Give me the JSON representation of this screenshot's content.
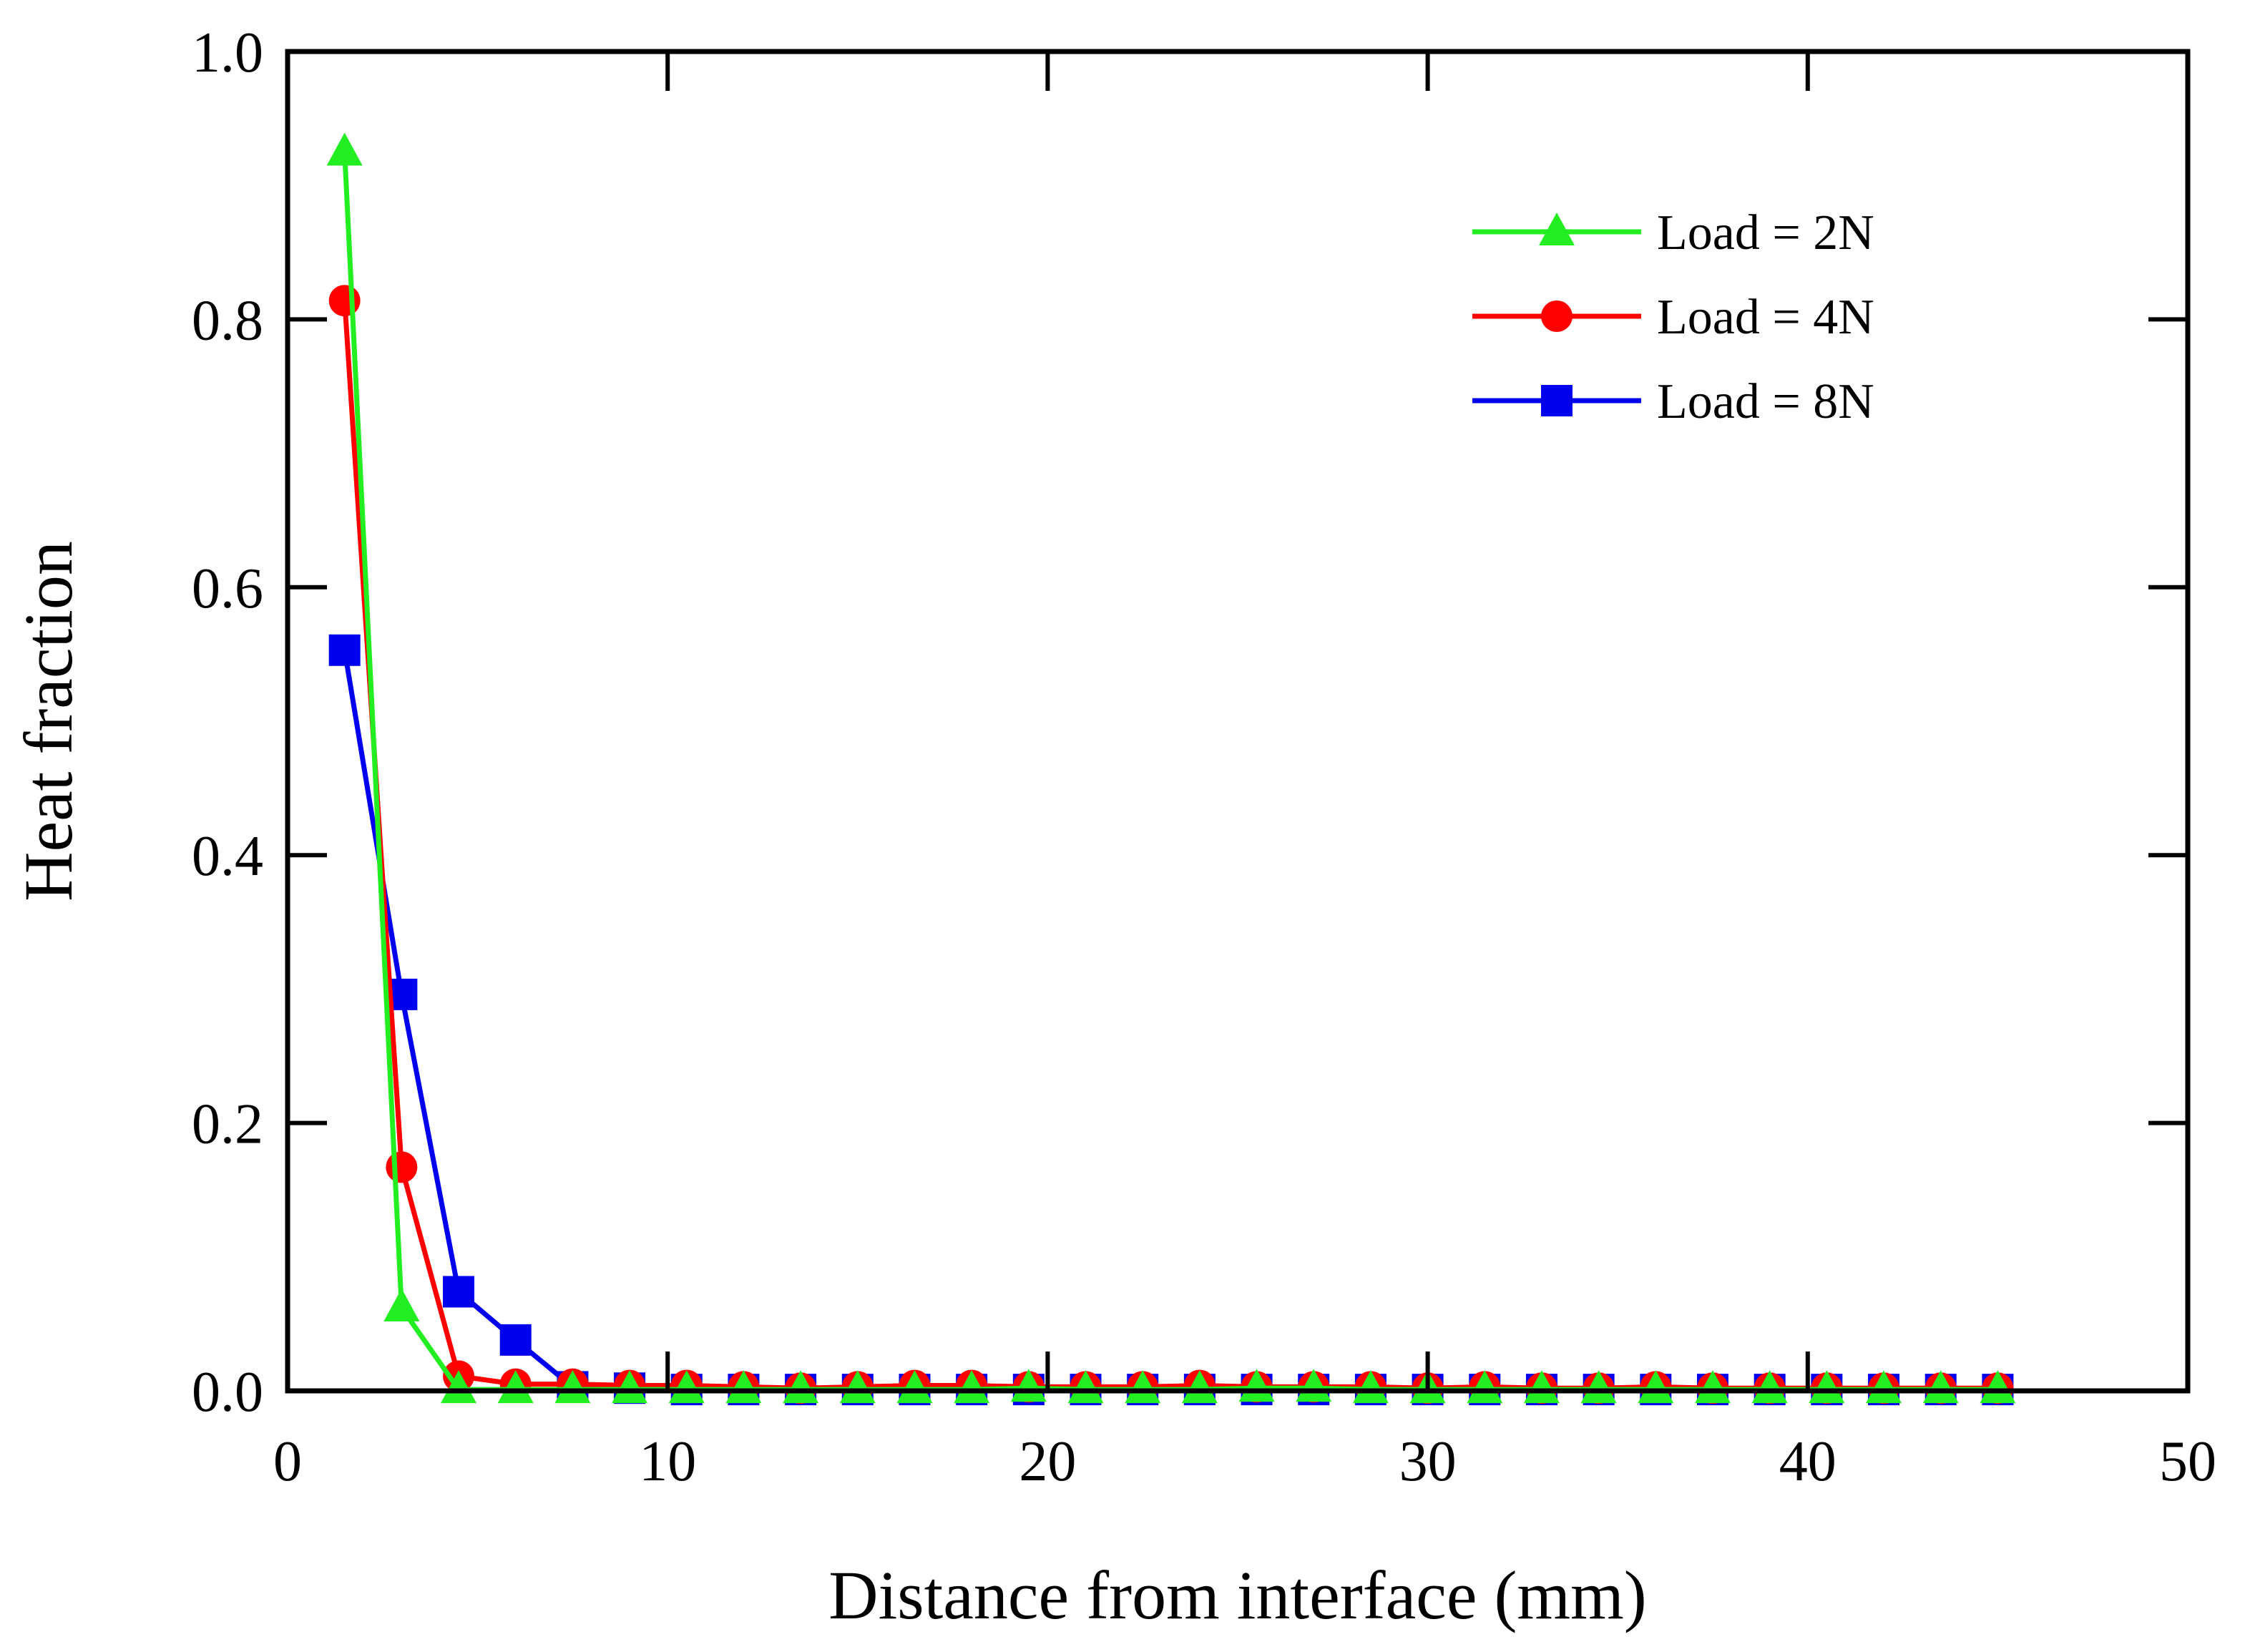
{
  "chart_data": {
    "type": "line",
    "title": "",
    "xlabel": "Distance from interface (mm)",
    "ylabel": "Heat fraction",
    "xlim": [
      0,
      50
    ],
    "ylim": [
      0,
      1.0
    ],
    "xticks": [
      0,
      10,
      20,
      30,
      40,
      50
    ],
    "xtick_labels": [
      "0",
      "10",
      "20",
      "30",
      "40",
      "50"
    ],
    "yticks": [
      0,
      0.2,
      0.4,
      0.6,
      0.8,
      1.0
    ],
    "ytick_labels": [
      "0.0",
      "0.2",
      "0.4",
      "0.6",
      "0.8",
      "1.0"
    ],
    "grid": false,
    "legend_position": "top-right",
    "series": [
      {
        "name": "Load = 8N",
        "color": "#0000ee",
        "marker": "square",
        "x": [
          1.5,
          3,
          4.5,
          6,
          7.5,
          9,
          10.5,
          12,
          13.5,
          15,
          16.5,
          18,
          19.5,
          21,
          22.5,
          24,
          25.5,
          27,
          28.5,
          30,
          31.5,
          33,
          34.5,
          36,
          37.5,
          39,
          40.5,
          42,
          43.5,
          45
        ],
        "y": [
          0.553,
          0.296,
          0.074,
          0.038,
          0.003,
          0.002,
          0.001,
          0.001,
          0.001,
          0.001,
          0.001,
          0.001,
          0.001,
          0.001,
          0.001,
          0.001,
          0.001,
          0.001,
          0.001,
          0.001,
          0.001,
          0.001,
          0.001,
          0.001,
          0.001,
          0.001,
          0.001,
          0.001,
          0.001,
          0.001
        ]
      },
      {
        "name": "Load = 4N",
        "color": "#ff0000",
        "marker": "circle",
        "x": [
          1.5,
          3,
          4.5,
          6,
          7.5,
          9,
          10.5,
          12,
          13.5,
          15,
          16.5,
          18,
          19.5,
          21,
          22.5,
          24,
          25.5,
          27,
          28.5,
          30,
          31.5,
          33,
          34.5,
          36,
          37.5,
          39,
          40.5,
          42,
          43.5,
          45
        ],
        "y": [
          0.814,
          0.167,
          0.011,
          0.005,
          0.005,
          0.004,
          0.004,
          0.003,
          0.002,
          0.003,
          0.004,
          0.004,
          0.003,
          0.003,
          0.003,
          0.004,
          0.003,
          0.003,
          0.003,
          0.002,
          0.003,
          0.002,
          0.002,
          0.003,
          0.002,
          0.002,
          0.002,
          0.002,
          0.002,
          0.002
        ]
      },
      {
        "name": "Load = 2N",
        "color": "#22ee22",
        "marker": "triangle",
        "x": [
          1.5,
          3,
          4.5,
          6,
          7.5,
          9,
          10.5,
          12,
          13.5,
          15,
          16.5,
          18,
          19.5,
          21,
          22.5,
          24,
          25.5,
          27,
          28.5,
          30,
          31.5,
          33,
          34.5,
          36,
          37.5,
          39,
          40.5,
          42,
          43.5,
          45
        ],
        "y": [
          0.925,
          0.062,
          0.001,
          0.001,
          0.001,
          0.001,
          0.001,
          0.001,
          0.001,
          0.001,
          0.001,
          0.001,
          0.002,
          0.001,
          0.001,
          0.001,
          0.002,
          0.002,
          0.001,
          0.001,
          0.001,
          0.001,
          0.001,
          0.001,
          0.001,
          0.001,
          0.001,
          0.001,
          0.001,
          0.001
        ]
      }
    ],
    "legend_order": [
      "Load = 2N",
      "Load = 4N",
      "Load = 8N"
    ]
  }
}
